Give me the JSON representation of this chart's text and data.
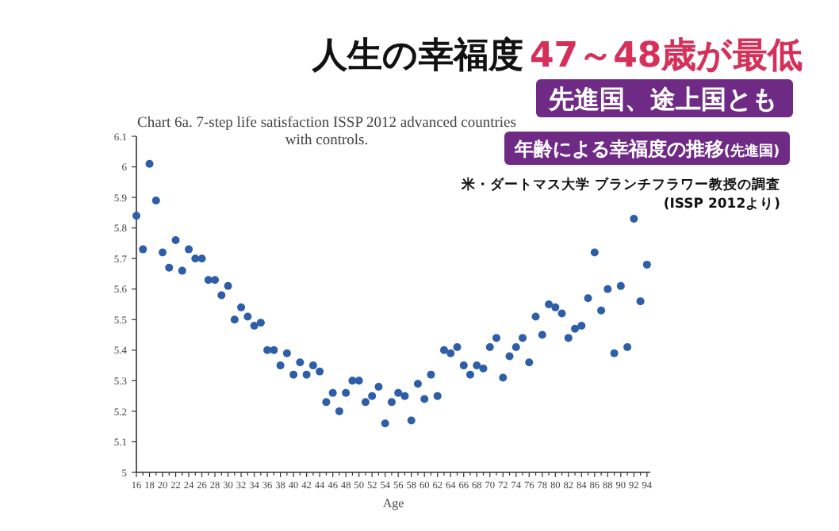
{
  "chart_data": {
    "type": "scatter",
    "title": "Chart 6a.  7-step life satisfaction ISSP 2012 advanced countries\nwith controls.",
    "xlabel": "Age",
    "annotations": [
      "人生の幸福度",
      "47～48歳が最低",
      "先進国、途上国とも",
      "年齢による幸福度の推移$_{(先進国)}$",
      "米・ダートマス大学 ブランチフラワー教授の調査",
      "(ISSP 2012より)"
    ],
    "x": [
      16,
      17,
      18,
      19,
      20,
      21,
      22,
      23,
      24,
      25,
      26,
      27,
      28,
      29,
      30,
      31,
      32,
      33,
      34,
      35,
      36,
      37,
      38,
      39,
      40,
      41,
      42,
      43,
      44,
      45,
      46,
      47,
      48,
      49,
      50,
      51,
      52,
      53,
      54,
      55,
      56,
      57,
      58,
      59,
      60,
      61,
      62,
      63,
      64,
      65,
      66,
      67,
      68,
      69,
      70,
      71,
      72,
      73,
      74,
      75,
      76,
      77,
      78,
      79,
      80,
      81,
      82,
      83,
      84,
      85,
      86,
      87,
      88,
      89,
      90,
      91,
      92,
      93,
      94
    ],
    "series": [
      {
        "color": "#2f5ea8",
        "values": [
          5.84,
          5.73,
          6.01,
          5.89,
          5.72,
          5.67,
          5.76,
          5.66,
          5.73,
          5.7,
          5.7,
          5.63,
          5.63,
          5.58,
          5.61,
          5.5,
          5.54,
          5.51,
          5.48,
          5.49,
          5.4,
          5.4,
          5.35,
          5.39,
          5.32,
          5.36,
          5.32,
          5.35,
          5.33,
          5.23,
          5.26,
          5.2,
          5.26,
          5.3,
          5.3,
          5.23,
          5.25,
          5.28,
          5.16,
          5.23,
          5.26,
          5.25,
          5.17,
          5.29,
          5.24,
          5.32,
          5.25,
          5.4,
          5.39,
          5.41,
          5.35,
          5.32,
          5.35,
          5.34,
          5.41,
          5.44,
          5.31,
          5.38,
          5.41,
          5.44,
          5.36,
          5.51,
          5.45,
          5.55,
          5.54,
          5.52,
          5.44,
          5.47,
          5.48,
          5.57,
          5.72,
          5.53,
          5.6,
          5.39,
          5.61,
          5.41,
          5.83,
          5.56,
          5.68
        ]
      }
    ],
    "marker": "circle",
    "grid": false,
    "xlim": [
      16,
      94.5
    ],
    "xticks": [
      16,
      {
        "value": 17,
        "label": null
      },
      18,
      {
        "value": 19,
        "label": null
      },
      20,
      {
        "value": 21,
        "label": null
      },
      22,
      {
        "value": 23,
        "label": null
      },
      24,
      {
        "value": 25,
        "label": null
      },
      26,
      {
        "value": 27,
        "label": null
      },
      28,
      {
        "value": 29,
        "label": null
      },
      30,
      {
        "value": 31,
        "label": null
      },
      32,
      {
        "value": 33,
        "label": null
      },
      34,
      {
        "value": 35,
        "label": null
      },
      36,
      {
        "value": 37,
        "label": null
      },
      38,
      {
        "value": 39,
        "label": null
      },
      40,
      {
        "value": 41,
        "label": null
      },
      42,
      {
        "value": 43,
        "label": null
      },
      44,
      {
        "value": 45,
        "label": null
      },
      46,
      {
        "value": 47,
        "label": null
      },
      48,
      {
        "value": 49,
        "label": null
      },
      50,
      {
        "value": 51,
        "label": null
      },
      52,
      {
        "value": 53,
        "label": null
      },
      54,
      {
        "value": 55,
        "label": null
      },
      56,
      {
        "value": 57,
        "label": null
      },
      58,
      {
        "value": 59,
        "label": null
      },
      60,
      {
        "value": 61,
        "label": null
      },
      62,
      {
        "value": 63,
        "label": null
      },
      64,
      {
        "value": 65,
        "label": null
      },
      66,
      {
        "value": 67,
        "label": null
      },
      68,
      {
        "value": 69,
        "label": null
      },
      70,
      {
        "value": 71,
        "label": null
      },
      72,
      {
        "value": 73,
        "label": null
      },
      74,
      {
        "value": 75,
        "label": null
      },
      76,
      {
        "value": 77,
        "label": null
      },
      78,
      {
        "value": 79,
        "label": null
      },
      80,
      {
        "value": 81,
        "label": null
      },
      82,
      {
        "value": 83,
        "label": null
      },
      84,
      {
        "value": 85,
        "label": null
      },
      86,
      {
        "value": 87,
        "label": null
      },
      88,
      {
        "value": 89,
        "label": null
      },
      90,
      {
        "value": 91,
        "label": null
      },
      92,
      {
        "value": 93,
        "label": null
      },
      94
    ],
    "ylim": [
      5,
      6.1
    ],
    "yticks": [
      5,
      5.1,
      5.2,
      5.3,
      5.4,
      5.5,
      5.6,
      5.7,
      5.8,
      5.9,
      6,
      6.1
    ]
  }
}
